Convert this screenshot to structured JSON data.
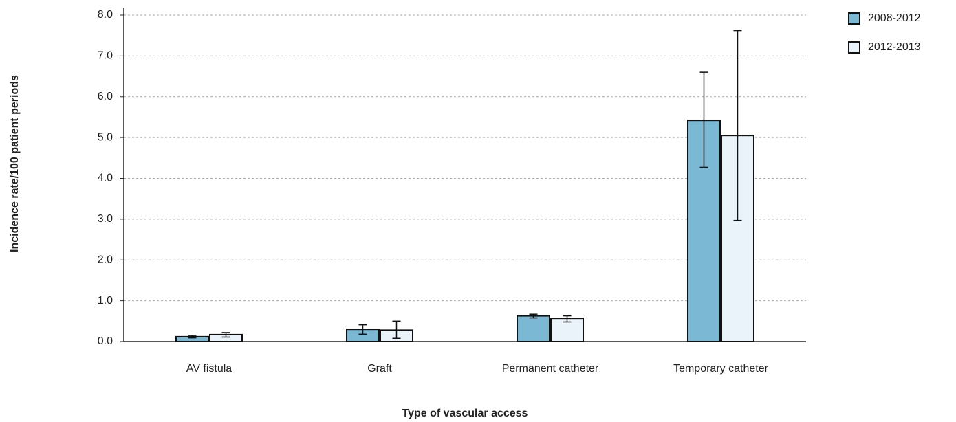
{
  "chart_data": {
    "type": "bar",
    "x_label": "Type of vascular access",
    "y_label": "Incidence rate/100 patient periods",
    "categories": [
      "AV fistula",
      "Graft",
      "Permanent catheter",
      "Temporary catheter"
    ],
    "series": [
      {
        "name": "2008-2012",
        "color": "#7bb8d4",
        "values": [
          0.12,
          0.3,
          0.63,
          5.42
        ],
        "ci": [
          [
            0.09,
            0.15
          ],
          [
            0.18,
            0.41
          ],
          [
            0.58,
            0.67
          ],
          [
            4.27,
            6.6
          ]
        ]
      },
      {
        "name": "2012-2013",
        "color": "#eaf3fa",
        "values": [
          0.17,
          0.28,
          0.57,
          5.05
        ],
        "ci": [
          [
            0.11,
            0.22
          ],
          [
            0.08,
            0.5
          ],
          [
            0.48,
            0.63
          ],
          [
            2.97,
            7.62
          ]
        ]
      }
    ],
    "ylim": [
      0,
      8
    ],
    "yticks": [
      {
        "value": 0,
        "label": "0.0"
      },
      {
        "value": 1,
        "label": "1.0"
      },
      {
        "value": 2,
        "label": "2.0"
      },
      {
        "value": 3,
        "label": "3.0"
      },
      {
        "value": 4,
        "label": "4.0"
      },
      {
        "value": 5,
        "label": "5.0"
      },
      {
        "value": 6,
        "label": "6.0"
      },
      {
        "value": 7,
        "label": "7.0"
      },
      {
        "value": 8,
        "label": "8.0"
      }
    ],
    "grid": true,
    "legend": "top-right"
  }
}
